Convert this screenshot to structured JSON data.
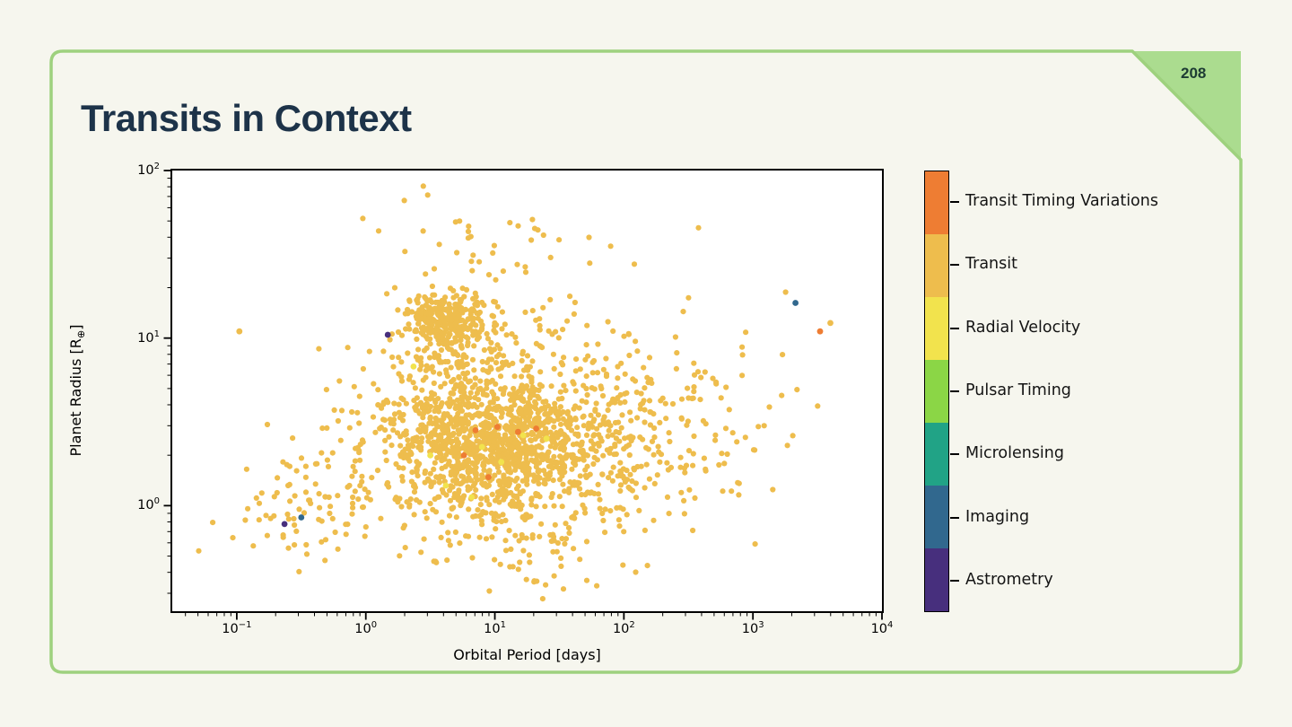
{
  "slide": {
    "title": "Transits in Context",
    "page_number": "208",
    "colors": {
      "background": "#f6f6ee",
      "frame": "#9ed17e",
      "corner": "#abdc8f",
      "title": "#1d3349",
      "page_number": "#1d3b33",
      "legend_text": "#141414"
    }
  },
  "chart_data": {
    "type": "scatter",
    "title": "",
    "xlabel": "Orbital Period [days]",
    "ylabel": "Planet Radius [R⊕]",
    "x_scale": "log",
    "y_scale": "log",
    "xlim_log": [
      -1.5,
      4.0
    ],
    "ylim_log": [
      -0.63,
      2.0
    ],
    "x_tick_exponents": [
      -1,
      0,
      1,
      2,
      3,
      4
    ],
    "y_tick_exponents": [
      2,
      1,
      0
    ],
    "grid": false,
    "point_radius_px": 3.1,
    "legend": {
      "position": "right-colorbar",
      "entries": [
        {
          "label": "Transit Timing Variations",
          "color": "#ee7d33"
        },
        {
          "label": "Transit",
          "color": "#eebd4d"
        },
        {
          "label": "Radial Velocity",
          "color": "#f2e34d"
        },
        {
          "label": "Pulsar Timing",
          "color": "#8bd646"
        },
        {
          "label": "Microlensing",
          "color": "#21a386"
        },
        {
          "label": "Imaging",
          "color": "#31688e"
        },
        {
          "label": "Astrometry",
          "color": "#472f7d"
        }
      ]
    },
    "clusters": [
      {
        "name": "hot-jupiters",
        "method": "Transit",
        "count": 300,
        "cx": 0.62,
        "cy": 1.1,
        "sx": 0.16,
        "sy": 0.085
      },
      {
        "name": "bridge",
        "method": "Transit",
        "count": 170,
        "cx": 0.8,
        "cy": 0.78,
        "sx": 0.28,
        "sy": 0.16
      },
      {
        "name": "main-population",
        "method": "Transit",
        "count": 1250,
        "cx": 1.02,
        "cy": 0.34,
        "sx": 0.5,
        "sy": 0.2
      },
      {
        "name": "diffuse-halo",
        "method": "Transit",
        "count": 300,
        "cx": 1.35,
        "cy": 0.52,
        "sx": 0.85,
        "sy": 0.38
      },
      {
        "name": "short-period-arm",
        "method": "Transit",
        "count": 80,
        "cx": -0.45,
        "cy": 0.02,
        "sx": 0.3,
        "sy": 0.16
      },
      {
        "name": "long-period-tail",
        "method": "Transit",
        "count": 120,
        "cx": 2.25,
        "cy": 0.55,
        "sx": 0.45,
        "sy": 0.3
      },
      {
        "name": "giant-radii-top",
        "method": "Transit",
        "count": 40,
        "cx": 0.95,
        "cy": 1.58,
        "sx": 0.42,
        "sy": 0.18
      },
      {
        "name": "small-radii-bottom",
        "method": "Transit",
        "count": 60,
        "cx": 1.15,
        "cy": -0.25,
        "sx": 0.45,
        "sy": 0.15
      }
    ],
    "outliers": [
      {
        "method": "Imaging",
        "x": 3.33,
        "y": 1.21
      },
      {
        "method": "Transit Timing Variations",
        "x": 3.52,
        "y": 1.04
      },
      {
        "method": "Transit",
        "x": 3.6,
        "y": 1.09
      },
      {
        "method": "Astrometry",
        "x": -0.63,
        "y": -0.11
      },
      {
        "method": "Imaging",
        "x": -0.5,
        "y": -0.07
      },
      {
        "method": "Astrometry",
        "x": 0.17,
        "y": 1.02
      },
      {
        "method": "Transit",
        "x": -0.98,
        "y": 1.04
      },
      {
        "method": "Transit Timing Variations",
        "x": 0.85,
        "y": 0.45
      },
      {
        "method": "Transit Timing Variations",
        "x": 1.02,
        "y": 0.47
      },
      {
        "method": "Transit Timing Variations",
        "x": 1.18,
        "y": 0.44
      },
      {
        "method": "Transit Timing Variations",
        "x": 0.76,
        "y": 0.3
      },
      {
        "method": "Transit Timing Variations",
        "x": 1.32,
        "y": 0.46
      },
      {
        "method": "Transit Timing Variations",
        "x": 0.95,
        "y": 0.17
      },
      {
        "method": "Radial Velocity",
        "x": 0.9,
        "y": 0.35
      },
      {
        "method": "Radial Velocity",
        "x": 1.22,
        "y": 0.42
      },
      {
        "method": "Radial Velocity",
        "x": 0.62,
        "y": 0.12
      },
      {
        "method": "Radial Velocity",
        "x": 1.05,
        "y": 0.26
      },
      {
        "method": "Radial Velocity",
        "x": 0.82,
        "y": 0.05
      },
      {
        "method": "Radial Velocity",
        "x": 1.4,
        "y": 0.4
      },
      {
        "method": "Radial Velocity",
        "x": 0.5,
        "y": 0.3
      },
      {
        "method": "Radial Velocity",
        "x": 0.37,
        "y": 0.83
      }
    ]
  }
}
